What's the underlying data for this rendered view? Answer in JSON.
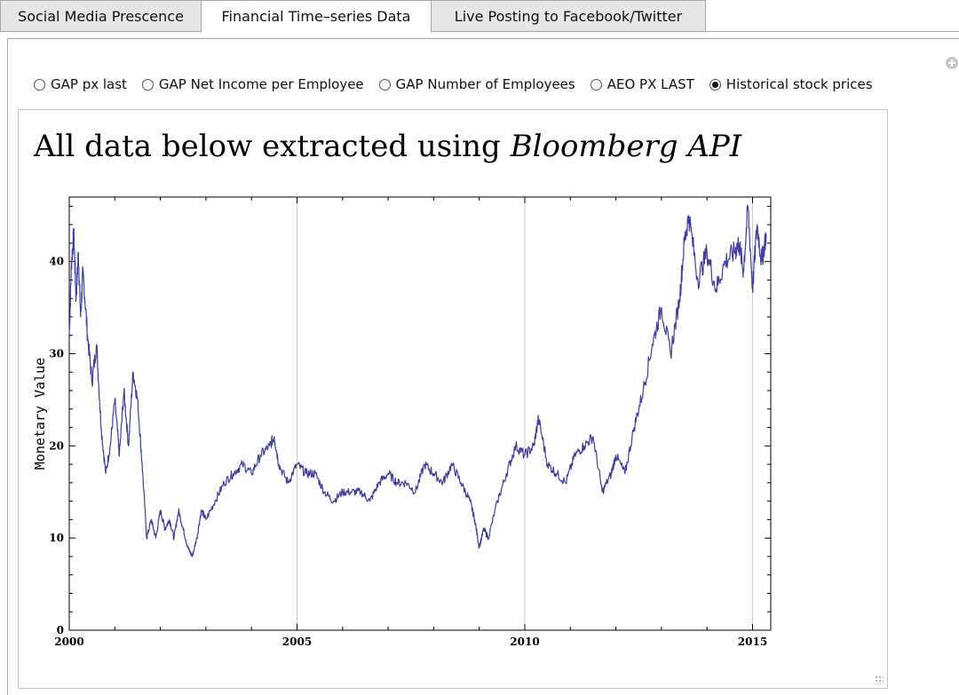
{
  "tabs": [
    {
      "label": "Social Media Prescence",
      "selected": false
    },
    {
      "label": "Financial Time–series Data",
      "selected": true
    },
    {
      "label": "Live Posting to Facebook/Twitter",
      "selected": false
    }
  ],
  "radio_options": [
    {
      "label": "GAP px last",
      "checked": false
    },
    {
      "label": "GAP Net Income per Employee",
      "checked": false
    },
    {
      "label": "GAP Number of Employees",
      "checked": false
    },
    {
      "label": "AEO PX LAST",
      "checked": false
    },
    {
      "label": "Historical stock prices",
      "checked": true
    }
  ],
  "heading": {
    "prefix": "All data below extracted using ",
    "emphasis": "Bloomberg API"
  },
  "chart_data": {
    "type": "line",
    "title": "",
    "xlabel": "",
    "ylabel": "Monetary Value",
    "xlim": [
      2000,
      2015.4
    ],
    "ylim": [
      0,
      47
    ],
    "x_ticks": [
      2000,
      2005,
      2010,
      2015
    ],
    "y_ticks": [
      0,
      10,
      20,
      30,
      40
    ],
    "grid": "vertical lines at major x ticks",
    "line_color": "#3f3f9c",
    "series": [
      {
        "x": [
          2000.0,
          2000.05,
          2000.1,
          2000.15,
          2000.2,
          2000.25,
          2000.3,
          2000.4,
          2000.5,
          2000.6,
          2000.7,
          2000.8,
          2000.9,
          2001.0,
          2001.1,
          2001.2,
          2001.3,
          2001.4,
          2001.5,
          2001.6,
          2001.7,
          2001.8,
          2001.9,
          2002.0,
          2002.1,
          2002.2,
          2002.3,
          2002.4,
          2002.5,
          2002.6,
          2002.7,
          2002.8,
          2002.9,
          2003.0,
          2003.2,
          2003.4,
          2003.6,
          2003.8,
          2004.0,
          2004.2,
          2004.4,
          2004.5,
          2004.6,
          2004.8,
          2005.0,
          2005.2,
          2005.4,
          2005.6,
          2005.8,
          2006.0,
          2006.2,
          2006.4,
          2006.6,
          2006.8,
          2007.0,
          2007.2,
          2007.4,
          2007.6,
          2007.8,
          2008.0,
          2008.2,
          2008.4,
          2008.6,
          2008.8,
          2008.9,
          2009.0,
          2009.1,
          2009.2,
          2009.4,
          2009.6,
          2009.8,
          2010.0,
          2010.2,
          2010.3,
          2010.5,
          2010.7,
          2010.9,
          2011.1,
          2011.3,
          2011.5,
          2011.7,
          2011.9,
          2012.0,
          2012.2,
          2012.4,
          2012.6,
          2012.8,
          2013.0,
          2013.2,
          2013.4,
          2013.5,
          2013.6,
          2013.8,
          2014.0,
          2014.2,
          2014.4,
          2014.6,
          2014.7,
          2014.8,
          2014.9,
          2015.0,
          2015.1,
          2015.2,
          2015.3
        ],
        "y": [
          32,
          40,
          43,
          36,
          41,
          34,
          39,
          32,
          27,
          31,
          22,
          17,
          20,
          25,
          19,
          26,
          20,
          28,
          25,
          18,
          10,
          12,
          10,
          13,
          11,
          12,
          10,
          13,
          11,
          9,
          8,
          10,
          13,
          12,
          14,
          16,
          17,
          18,
          17,
          19,
          20,
          21,
          18,
          16,
          18,
          17,
          17,
          15,
          14,
          15,
          15,
          15,
          14,
          16,
          17,
          16,
          16,
          15,
          18,
          17,
          16,
          18,
          16,
          14,
          12,
          9,
          11,
          10,
          14,
          17,
          20,
          19,
          20,
          23,
          18,
          17,
          16,
          19,
          20,
          21,
          15,
          17,
          19,
          17,
          22,
          26,
          31,
          35,
          30,
          36,
          42,
          45,
          38,
          41,
          37,
          40,
          41,
          42,
          39,
          46,
          37,
          44,
          40,
          43
        ]
      }
    ]
  }
}
